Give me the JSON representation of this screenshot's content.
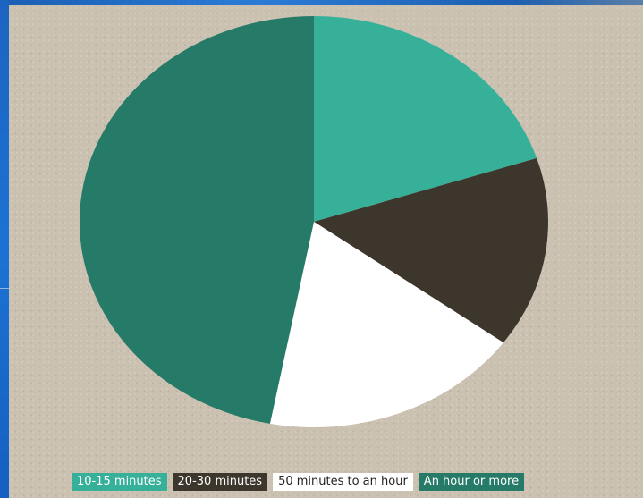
{
  "chart_data": {
    "type": "pie",
    "title": "",
    "categories": [
      "10-15 minutes",
      "20-30 minutes",
      "50 minutes to an hour",
      "An hour or more"
    ],
    "values": [
      20,
      15,
      18,
      47
    ],
    "colors": [
      "#36b099",
      "#3d362c",
      "#ffffff",
      "#257a68"
    ],
    "label_colors": [
      "#ffffff",
      "#ffffff",
      "#222222",
      "#ffffff"
    ],
    "start_angle_deg": 0,
    "direction": "clockwise",
    "legend_position": "bottom"
  }
}
